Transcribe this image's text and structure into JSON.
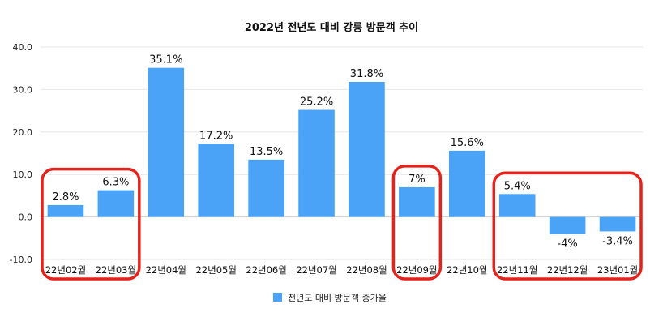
{
  "chart_data": {
    "type": "bar",
    "title": "2022년 전년도 대비 강릉 방문객 추이",
    "categories": [
      "22년02월",
      "22년03월",
      "22년04월",
      "22년05월",
      "22년06월",
      "22년07월",
      "22년08월",
      "22년09월",
      "22년10월",
      "22년11월",
      "22년12월",
      "23년01월"
    ],
    "series": [
      {
        "name": "전년도 대비 방문객 증가율",
        "values": [
          2.8,
          6.3,
          35.1,
          17.2,
          13.5,
          25.2,
          31.8,
          7,
          15.6,
          5.4,
          -4,
          -3.4
        ],
        "labels": [
          "2.8%",
          "6.3%",
          "35.1%",
          "17.2%",
          "13.5%",
          "25.2%",
          "31.8%",
          "7%",
          "15.6%",
          "5.4%",
          "-4%",
          "-3.4%"
        ]
      }
    ],
    "ylim": [
      -10,
      40
    ],
    "yticks": [
      "-10.0",
      "0.0",
      "10.0",
      "20.0",
      "30.0",
      "40.0"
    ],
    "xlabel": "",
    "ylabel": "",
    "grid": true,
    "legend_position": "bottom",
    "bar_color": "#4aa3f7",
    "highlight_color": "#e5221b",
    "highlighted_groups": [
      [
        0,
        1
      ],
      [
        7
      ],
      [
        9,
        10,
        11
      ]
    ]
  }
}
